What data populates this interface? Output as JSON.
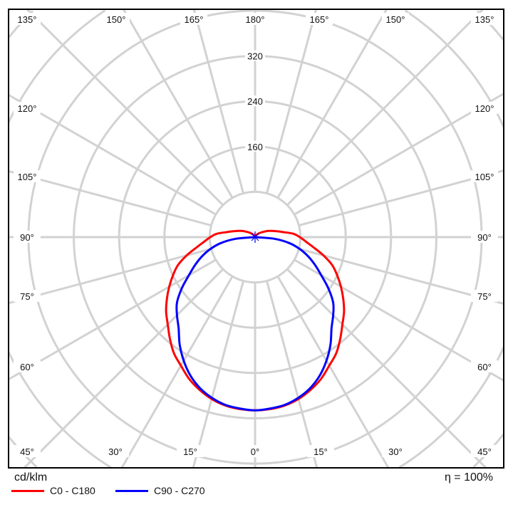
{
  "chart_data": {
    "type": "polar",
    "unit_label": "cd/klm",
    "efficiency_label": "η = 100%",
    "radial_ticks": [
      160,
      240,
      320
    ],
    "radial_rings": [
      80,
      160,
      240,
      320,
      400,
      480,
      560
    ],
    "angle_step": 15,
    "angle_labels": {
      "top": [
        "135°",
        "150°",
        "165°",
        "180°",
        "165°",
        "150°",
        "135°"
      ],
      "left": [
        "120°",
        "105°",
        "90°",
        "75°",
        "60°"
      ],
      "right": [
        "120°",
        "105°",
        "90°",
        "75°",
        "60°"
      ],
      "bottom": [
        "45°",
        "30°",
        "15°",
        "0°",
        "15°",
        "30°",
        "45°"
      ]
    },
    "grid": true,
    "legend_placement": "bottom-left",
    "series": [
      {
        "name": "C0 - C180",
        "color": "#ff0000",
        "angles": [
          0,
          5,
          10,
          15,
          20,
          25,
          30,
          35,
          40,
          45,
          50,
          55,
          60,
          65,
          70,
          75,
          80,
          85,
          90,
          95,
          100,
          105,
          110,
          115,
          120,
          130,
          140,
          150,
          165,
          180
        ],
        "values": [
          306,
          305,
          302,
          296,
          287,
          276,
          262,
          250,
          234,
          218,
          205,
          190,
          175,
          160,
          145,
          125,
          105,
          90,
          79,
          68,
          51,
          40,
          32,
          26,
          20,
          12,
          7,
          4,
          2,
          0
        ]
      },
      {
        "name": "C90 - C270",
        "color": "#0000ff",
        "angles": [
          0,
          5,
          10,
          15,
          20,
          25,
          30,
          35,
          40,
          45,
          50,
          55,
          60,
          65,
          70,
          75,
          80,
          85,
          90
        ],
        "values": [
          306,
          304,
          301,
          294,
          284,
          270,
          252,
          232,
          210,
          195,
          180,
          158,
          135,
          117,
          100,
          82,
          62,
          35,
          0
        ]
      }
    ]
  }
}
